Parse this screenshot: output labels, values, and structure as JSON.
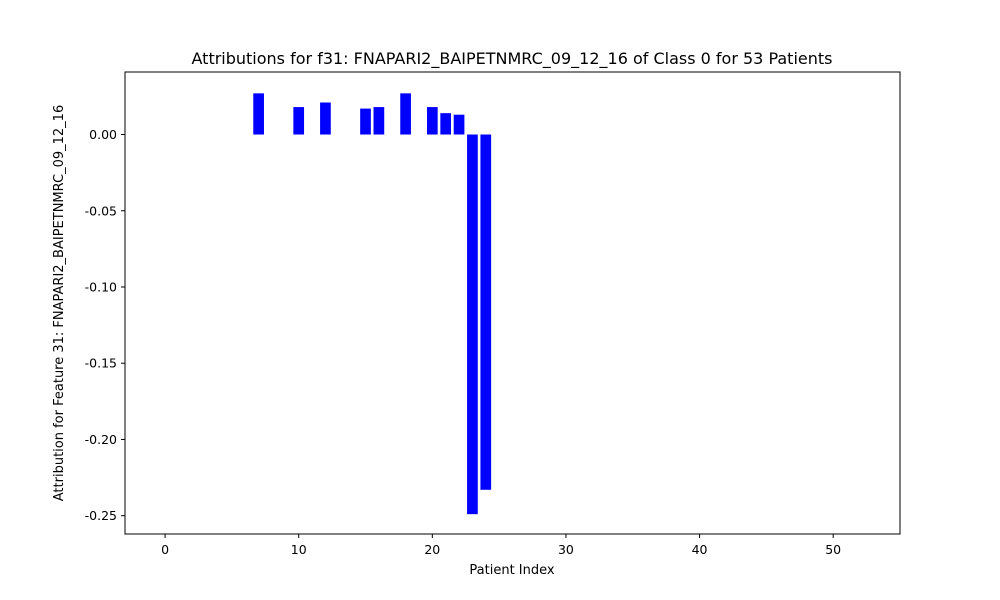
{
  "chart_data": {
    "type": "bar",
    "title": "Attributions for f31: FNAPARI2_BAIPETNMRC_09_12_16 of Class 0 for 53 Patients",
    "xlabel": "Patient Index",
    "ylabel": "Attribution for Feature 31: FNAPARI2_BAIPETNMRC_09_12_16",
    "xlim": [
      -3,
      55
    ],
    "ylim": [
      -0.262,
      0.041
    ],
    "xticks": [
      0,
      10,
      20,
      30,
      40,
      50
    ],
    "xtick_labels": [
      "0",
      "10",
      "20",
      "30",
      "40",
      "50"
    ],
    "yticks": [
      0.0,
      -0.05,
      -0.1,
      -0.15,
      -0.2,
      -0.25
    ],
    "ytick_labels": [
      "0.00",
      "-0.05",
      "-0.10",
      "-0.15",
      "-0.20",
      "-0.25"
    ],
    "bar_color": "#0000ff",
    "grid": false,
    "x": [
      7,
      10,
      12,
      15,
      16,
      18,
      20,
      21,
      22,
      23,
      24
    ],
    "values": [
      0.027,
      0.018,
      0.021,
      0.017,
      0.018,
      0.027,
      0.018,
      0.014,
      0.013,
      -0.249,
      -0.233
    ]
  }
}
